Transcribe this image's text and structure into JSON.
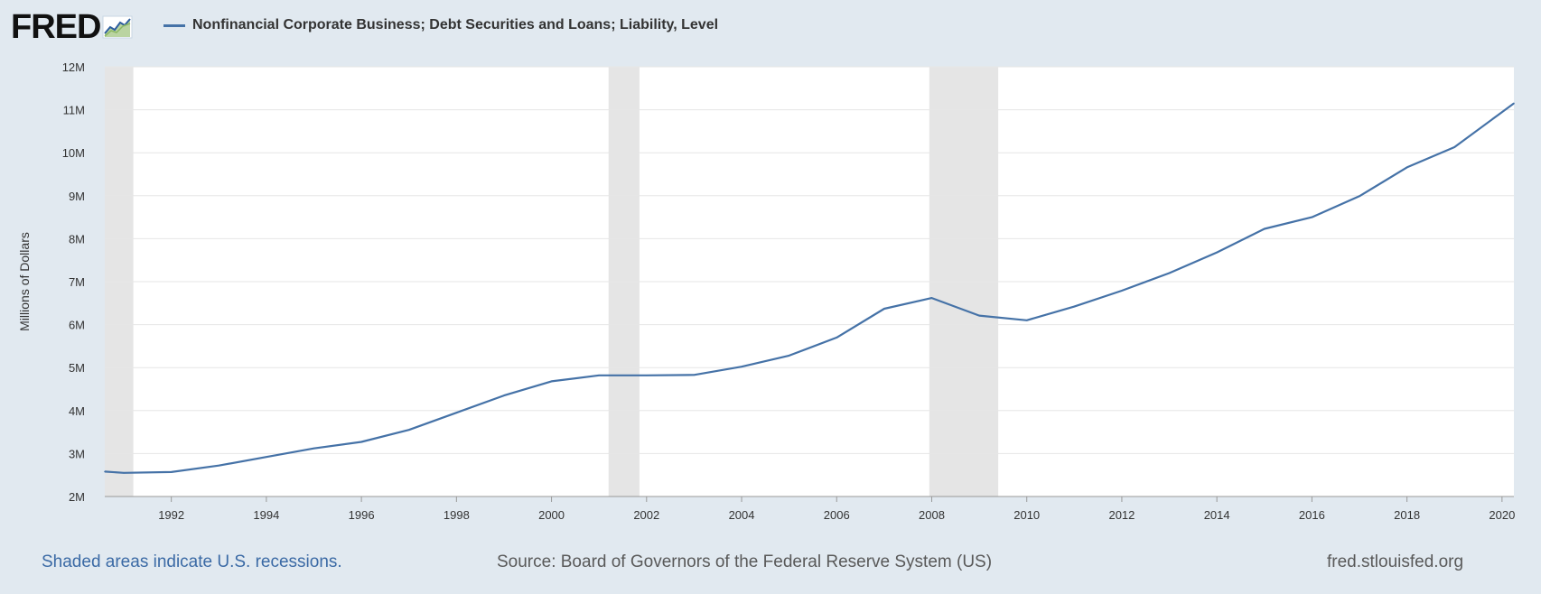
{
  "logo": {
    "text": "FRED",
    "colors": {
      "text": "#111111",
      "icon_line": "#2e5e9e",
      "icon_fill": "#8cb863"
    }
  },
  "colors": {
    "background": "#e1e9f0",
    "plot_bg": "#ffffff",
    "grid": "#e6e6e6",
    "recession": "#e5e5e5",
    "series": "#4572a7"
  },
  "footer": {
    "note": "Shaded areas indicate U.S. recessions.",
    "source": "Source: Board of Governors of the Federal Reserve System (US)",
    "site": "fred.stlouisfed.org"
  },
  "chart_data": {
    "type": "line",
    "title": "Nonfinancial Corporate Business; Debt Securities and Loans; Liability, Level",
    "xlabel": "",
    "ylabel": "Millions of Dollars",
    "xlim": [
      1990.6,
      2020.25
    ],
    "ylim": [
      2000000,
      12000000
    ],
    "grid": true,
    "legend": "top-left",
    "x_ticks": [
      1992,
      1994,
      1996,
      1998,
      2000,
      2002,
      2004,
      2006,
      2008,
      2010,
      2012,
      2014,
      2016,
      2018,
      2020
    ],
    "y_ticks": [
      {
        "value": 2000000,
        "label": "2M"
      },
      {
        "value": 3000000,
        "label": "3M"
      },
      {
        "value": 4000000,
        "label": "4M"
      },
      {
        "value": 5000000,
        "label": "5M"
      },
      {
        "value": 6000000,
        "label": "6M"
      },
      {
        "value": 7000000,
        "label": "7M"
      },
      {
        "value": 8000000,
        "label": "8M"
      },
      {
        "value": 9000000,
        "label": "9M"
      },
      {
        "value": 10000000,
        "label": "10M"
      },
      {
        "value": 11000000,
        "label": "11M"
      },
      {
        "value": 12000000,
        "label": "12M"
      }
    ],
    "recessions": [
      {
        "start": 1990.6,
        "end": 1991.2
      },
      {
        "start": 2001.2,
        "end": 2001.85
      },
      {
        "start": 2007.95,
        "end": 2009.4
      }
    ],
    "series": [
      {
        "name": "Nonfinancial Corporate Business; Debt Securities and Loans; Liability, Level",
        "x": [
          1990.6,
          1991,
          1992,
          1993,
          1994,
          1995,
          1996,
          1997,
          1998,
          1999,
          2000,
          2001,
          2002,
          2003,
          2004,
          2005,
          2006,
          2007,
          2008,
          2009,
          2010,
          2011,
          2012,
          2013,
          2014,
          2015,
          2016,
          2017,
          2018,
          2019,
          2020.25
        ],
        "y": [
          2580000,
          2550000,
          2570000,
          2720000,
          2920000,
          3120000,
          3270000,
          3550000,
          3950000,
          4350000,
          4680000,
          4820000,
          4820000,
          4830000,
          5020000,
          5280000,
          5700000,
          6370000,
          6620000,
          6210000,
          6100000,
          6420000,
          6790000,
          7200000,
          7680000,
          8230000,
          8500000,
          8990000,
          9660000,
          10130000,
          11150000
        ]
      }
    ]
  }
}
